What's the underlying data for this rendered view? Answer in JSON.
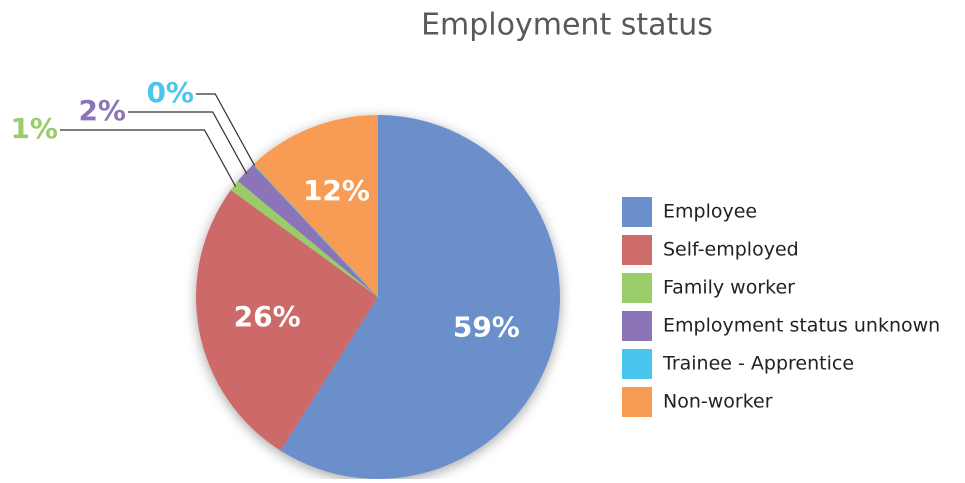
{
  "chart_data": {
    "type": "pie",
    "title": "Employment status",
    "categories": [
      "Employee",
      "Self-employed",
      "Family worker",
      "Employment status unknown",
      "Trainee - Apprentice",
      "Non-worker"
    ],
    "values": [
      59,
      26,
      1,
      2,
      0,
      12
    ],
    "value_labels": [
      "59%",
      "26%",
      "1%",
      "2%",
      "0%",
      "12%"
    ],
    "colors": [
      "#6a8fcb",
      "#cd6b69",
      "#9bcc6a",
      "#8b75b8",
      "#4ac6ee",
      "#f79b54"
    ],
    "legend": "right"
  }
}
